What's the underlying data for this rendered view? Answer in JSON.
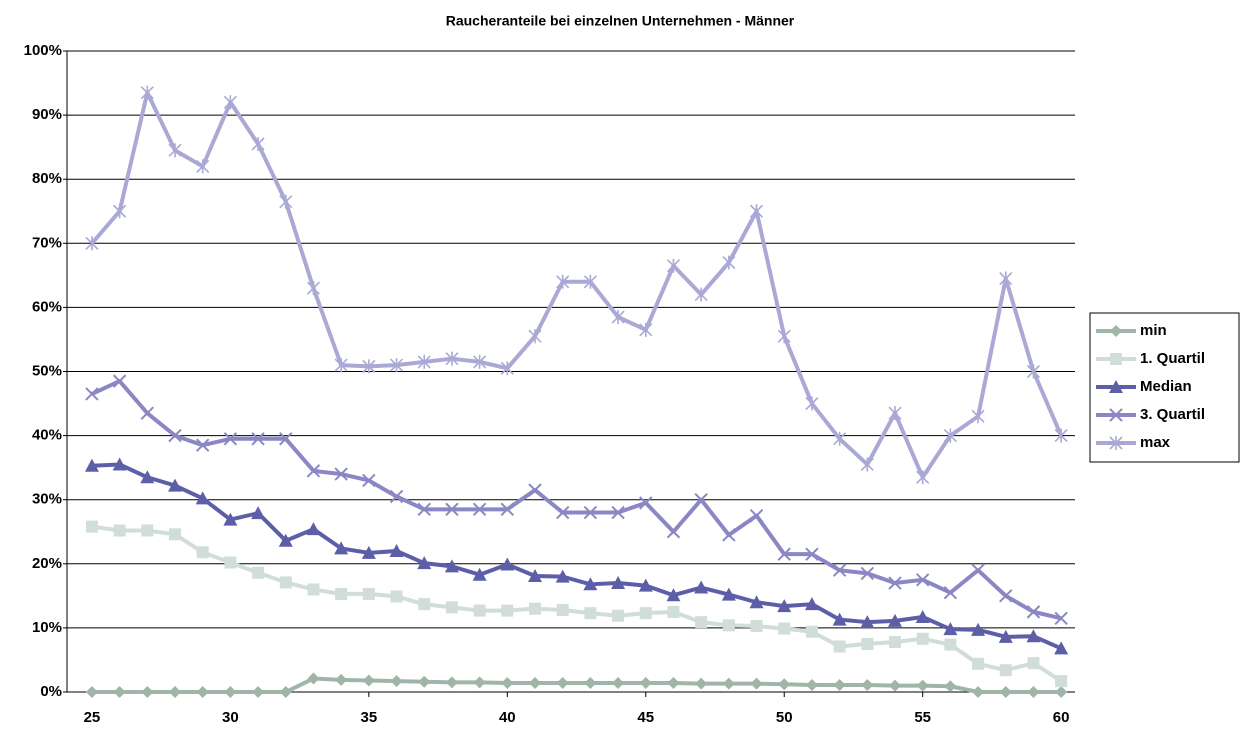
{
  "chart_data": {
    "type": "line",
    "title": "Raucheranteile bei einzelnen Unternehmen - Männer",
    "x": [
      25,
      26,
      27,
      28,
      29,
      30,
      31,
      32,
      33,
      34,
      35,
      36,
      37,
      38,
      39,
      40,
      41,
      42,
      43,
      44,
      45,
      46,
      47,
      48,
      49,
      50,
      51,
      52,
      53,
      54,
      55,
      56,
      57,
      58,
      59,
      60
    ],
    "xlim": [
      24.1,
      60.5
    ],
    "xticks": [
      25,
      30,
      35,
      40,
      45,
      50,
      55,
      60
    ],
    "ylim": [
      0,
      100
    ],
    "yticks": [
      {
        "value": 0,
        "label": "0%"
      },
      {
        "value": 10,
        "label": "10%"
      },
      {
        "value": 20,
        "label": "20%"
      },
      {
        "value": 30,
        "label": "30%"
      },
      {
        "value": 40,
        "label": "40%"
      },
      {
        "value": 50,
        "label": "50%"
      },
      {
        "value": 60,
        "label": "60%"
      },
      {
        "value": 70,
        "label": "70%"
      },
      {
        "value": 80,
        "label": "80%"
      },
      {
        "value": 90,
        "label": "90%"
      },
      {
        "value": 100,
        "label": "100%"
      }
    ],
    "grid": true,
    "legend": "right",
    "series": [
      {
        "name": "min",
        "color": "#9fb5a8",
        "marker": "diamond",
        "values": [
          0,
          0,
          0,
          0,
          0,
          0,
          0,
          0,
          2.1,
          1.9,
          1.8,
          1.7,
          1.6,
          1.5,
          1.5,
          1.4,
          1.4,
          1.4,
          1.4,
          1.4,
          1.4,
          1.4,
          1.3,
          1.3,
          1.3,
          1.2,
          1.1,
          1.1,
          1.1,
          1.0,
          1.0,
          0.9,
          0,
          0,
          0,
          0
        ]
      },
      {
        "name": "1. Quartil",
        "color": "#d0ddd8",
        "marker": "square",
        "values": [
          25.8,
          25.2,
          25.2,
          24.6,
          21.8,
          20.2,
          18.6,
          17.1,
          16,
          15.3,
          15.3,
          14.9,
          13.7,
          13.2,
          12.7,
          12.7,
          13,
          12.8,
          12.3,
          11.9,
          12.3,
          12.5,
          10.9,
          10.4,
          10.3,
          9.9,
          9.4,
          7.1,
          7.5,
          7.8,
          8.3,
          7.4,
          4.4,
          3.4,
          4.5,
          1.7
        ]
      },
      {
        "name": "Median",
        "color": "#5c5fa8",
        "marker": "triangle",
        "values": [
          35.3,
          35.5,
          33.5,
          32.2,
          30.2,
          26.9,
          27.9,
          23.6,
          25.4,
          22.4,
          21.7,
          22,
          20.1,
          19.6,
          18.3,
          19.9,
          18.1,
          18,
          16.8,
          17,
          16.6,
          15.1,
          16.3,
          15.2,
          14,
          13.4,
          13.7,
          11.3,
          10.9,
          11.1,
          11.7,
          9.8,
          9.7,
          8.6,
          8.7,
          6.8
        ]
      },
      {
        "name": "3. Quartil",
        "color": "#8a87c4",
        "marker": "x",
        "values": [
          46.5,
          48.5,
          43.5,
          40,
          38.5,
          39.5,
          39.5,
          39.5,
          34.5,
          34,
          33,
          30.5,
          28.5,
          28.5,
          28.5,
          28.5,
          31.5,
          28,
          28,
          28,
          29.5,
          25,
          30,
          24.5,
          27.5,
          21.5,
          21.5,
          19,
          18.5,
          17,
          17.5,
          15.5,
          19,
          15,
          12.5,
          11.5
        ]
      },
      {
        "name": "max",
        "color": "#aaa8d4",
        "marker": "star",
        "values": [
          70,
          75,
          93.5,
          84.5,
          82,
          92,
          85.5,
          76.5,
          63,
          51,
          50.8,
          51,
          51.5,
          52,
          51.5,
          50.5,
          55.5,
          64,
          64,
          58.5,
          56.5,
          66.5,
          62,
          67,
          75,
          55.5,
          45,
          39.5,
          35.5,
          43.5,
          33.5,
          40,
          43,
          64.5,
          50,
          40
        ]
      }
    ]
  }
}
